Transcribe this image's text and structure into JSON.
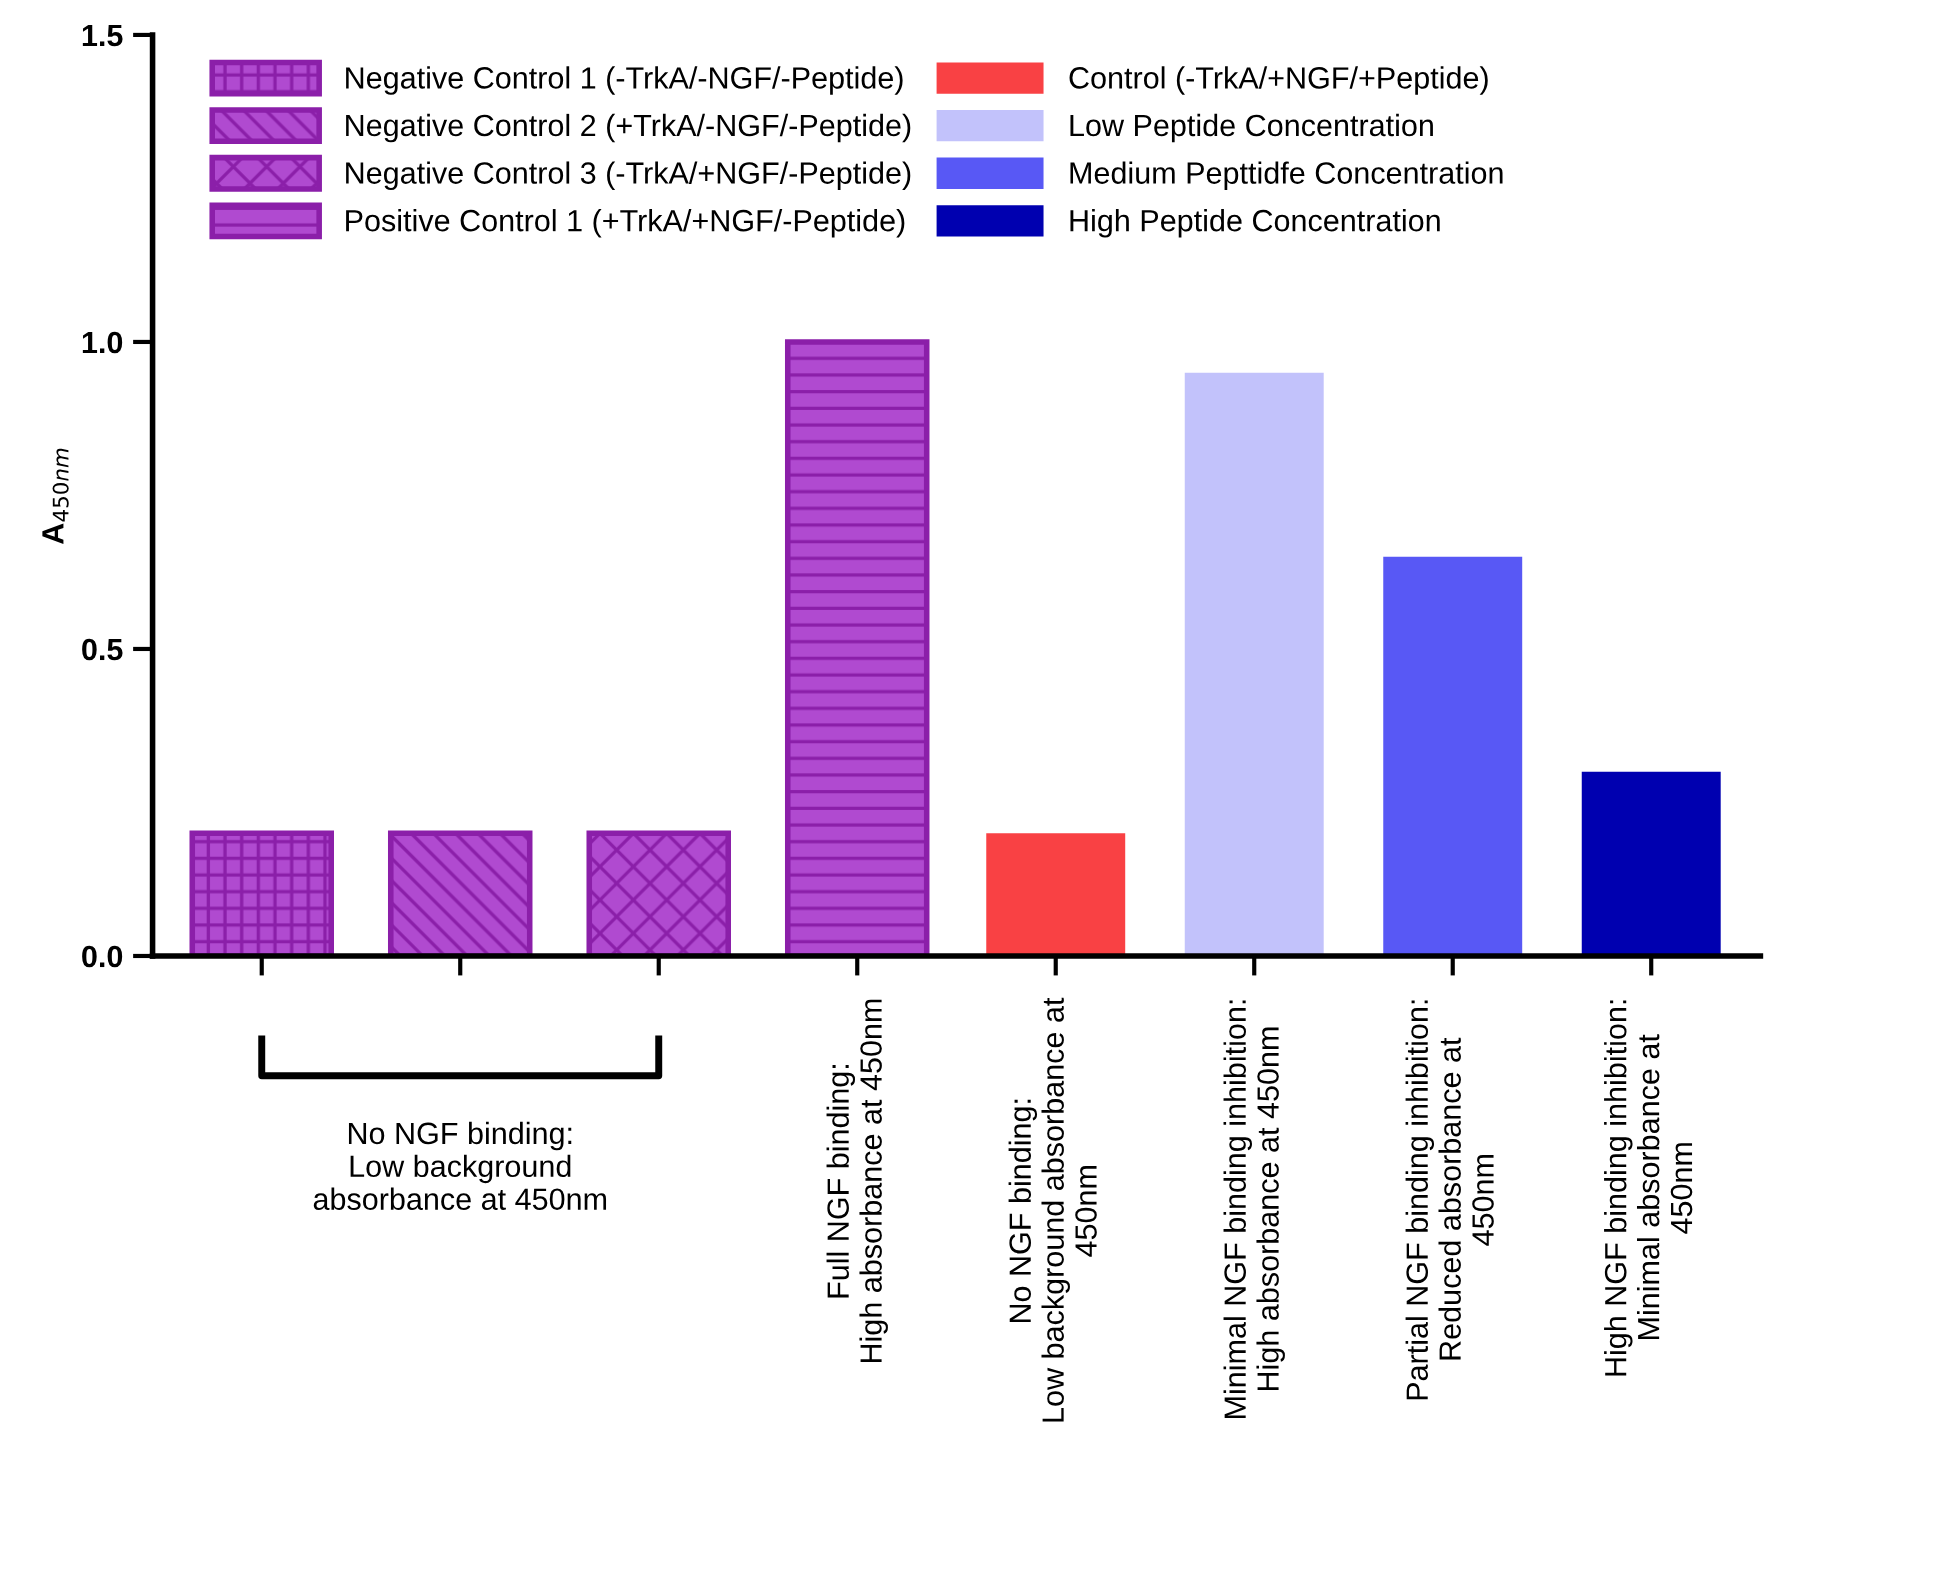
{
  "chart_data": {
    "type": "bar",
    "categories": [
      null,
      null,
      null,
      "Full NGF binding:\nHigh absorbance at 450nm",
      "No NGF binding:\nLow background absorbance at\n450nm",
      "Minimal NGF binding inhibition:\nHigh absorbance at 450nm",
      "Partial NGF binding inhibition:\nReduced absorbance at\n450nm",
      "High NGF binding inhibition:\nMinimal absorbance at\n450nm"
    ],
    "series": [
      {
        "name": "Negative Control 1 (-TrkA/-NGF/-Peptide)",
        "color": "#8b1fa9",
        "values": [
          0.2,
          null,
          null,
          null,
          null,
          null,
          null,
          null
        ]
      },
      {
        "name": "Negative Control 2 (+TrkA/-NGF/-Peptide)",
        "color": "#8b1fa9",
        "values": [
          null,
          0.2,
          null,
          null,
          null,
          null,
          null,
          null
        ]
      },
      {
        "name": "Negative Control 3 (-TrkA/+NGF/-Peptide)",
        "color": "#8b1fa9",
        "values": [
          null,
          null,
          0.2,
          null,
          null,
          null,
          null,
          null
        ]
      },
      {
        "name": "Positive Control 1 (+TrkA/+NGF/-Peptide)",
        "color": "#8b1fa9",
        "values": [
          null,
          null,
          null,
          1.0,
          null,
          null,
          null,
          null
        ]
      },
      {
        "name": "Control (-TrkA/+NGF/+Peptide)",
        "color": "#f94144",
        "values": [
          null,
          null,
          null,
          null,
          0.2,
          null,
          null,
          null
        ]
      },
      {
        "name": "Low Peptide Concentration",
        "color": "#c2c2fb",
        "values": [
          null,
          null,
          null,
          null,
          null,
          0.95,
          null,
          null
        ]
      },
      {
        "name": "Medium Pepttidfe Concentration",
        "color": "#5858f5",
        "values": [
          null,
          null,
          null,
          null,
          null,
          null,
          0.65,
          null
        ]
      },
      {
        "name": "High Peptide Concentration",
        "color": "#0000b0",
        "values": [
          null,
          null,
          null,
          null,
          null,
          null,
          null,
          0.3
        ]
      }
    ],
    "ylabel": "A$_{450nm}$",
    "ylim": [
      0,
      1.5
    ],
    "yticks": [
      {
        "value": 0,
        "label": "0.0"
      },
      {
        "value": 0.5,
        "label": "0.5"
      },
      {
        "value": 1.0,
        "label": "1.0"
      },
      {
        "value": 1.5,
        "label": "1.5"
      }
    ],
    "annotations": [
      "No NGF binding:\nLow background\nabsorbance at 450nm"
    ],
    "legend": "top left",
    "grid": false
  }
}
